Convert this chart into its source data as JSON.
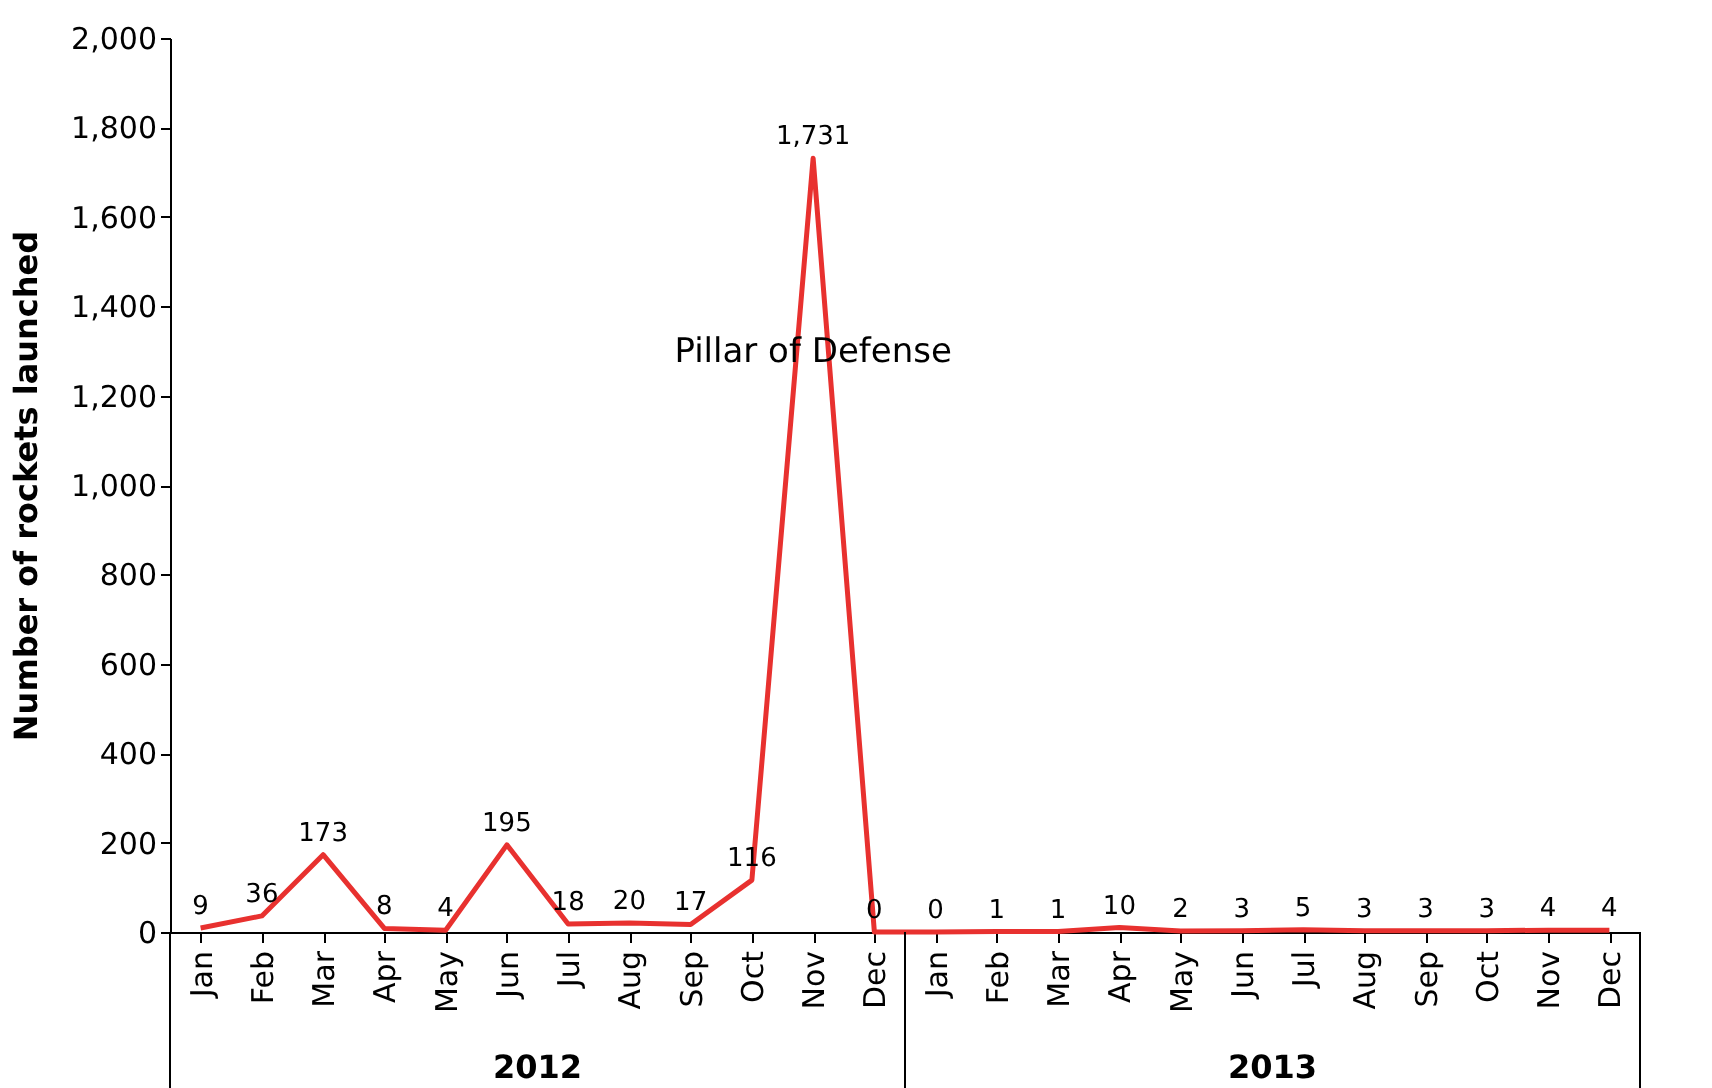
{
  "chart_data": {
    "type": "line",
    "ylabel": "Number of rockets launched",
    "categories": [
      "Jan",
      "Feb",
      "Mar",
      "Apr",
      "May",
      "Jun",
      "Jul",
      "Aug",
      "Sep",
      "Oct",
      "Nov",
      "Dec",
      "Jan",
      "Feb",
      "Mar",
      "Apr",
      "May",
      "Jun",
      "Jul",
      "Aug",
      "Sep",
      "Oct",
      "Nov",
      "Dec"
    ],
    "series": [
      {
        "color": "#e8312f",
        "values": [
          9,
          36,
          173,
          8,
          4,
          195,
          18,
          20,
          17,
          116,
          1731,
          0,
          0,
          1,
          1,
          10,
          2,
          3,
          5,
          3,
          3,
          3,
          4,
          4
        ],
        "value_labels": [
          "9",
          "36",
          "173",
          "8",
          "4",
          "195",
          "18",
          "20",
          "17",
          "116",
          "1,731",
          "0",
          "0",
          "1",
          "1",
          "10",
          "2",
          "3",
          "5",
          "3",
          "3",
          "3",
          "4",
          "4"
        ]
      }
    ],
    "ylim": [
      0,
      2000
    ],
    "yticks": [
      0,
      200,
      400,
      600,
      800,
      {
        "value": 1000,
        "label": "1,000"
      },
      {
        "value": 1200,
        "label": "1,200"
      },
      {
        "value": 1400,
        "label": "1,400"
      },
      {
        "value": 1600,
        "label": "1,600"
      },
      {
        "value": 1800,
        "label": "1,800"
      },
      {
        "value": 2000,
        "label": "2,000"
      }
    ],
    "grid": false,
    "marker": "none",
    "line_style": "solid",
    "annotations": [
      "Pillar of Defense",
      "2012",
      "2013"
    ]
  }
}
